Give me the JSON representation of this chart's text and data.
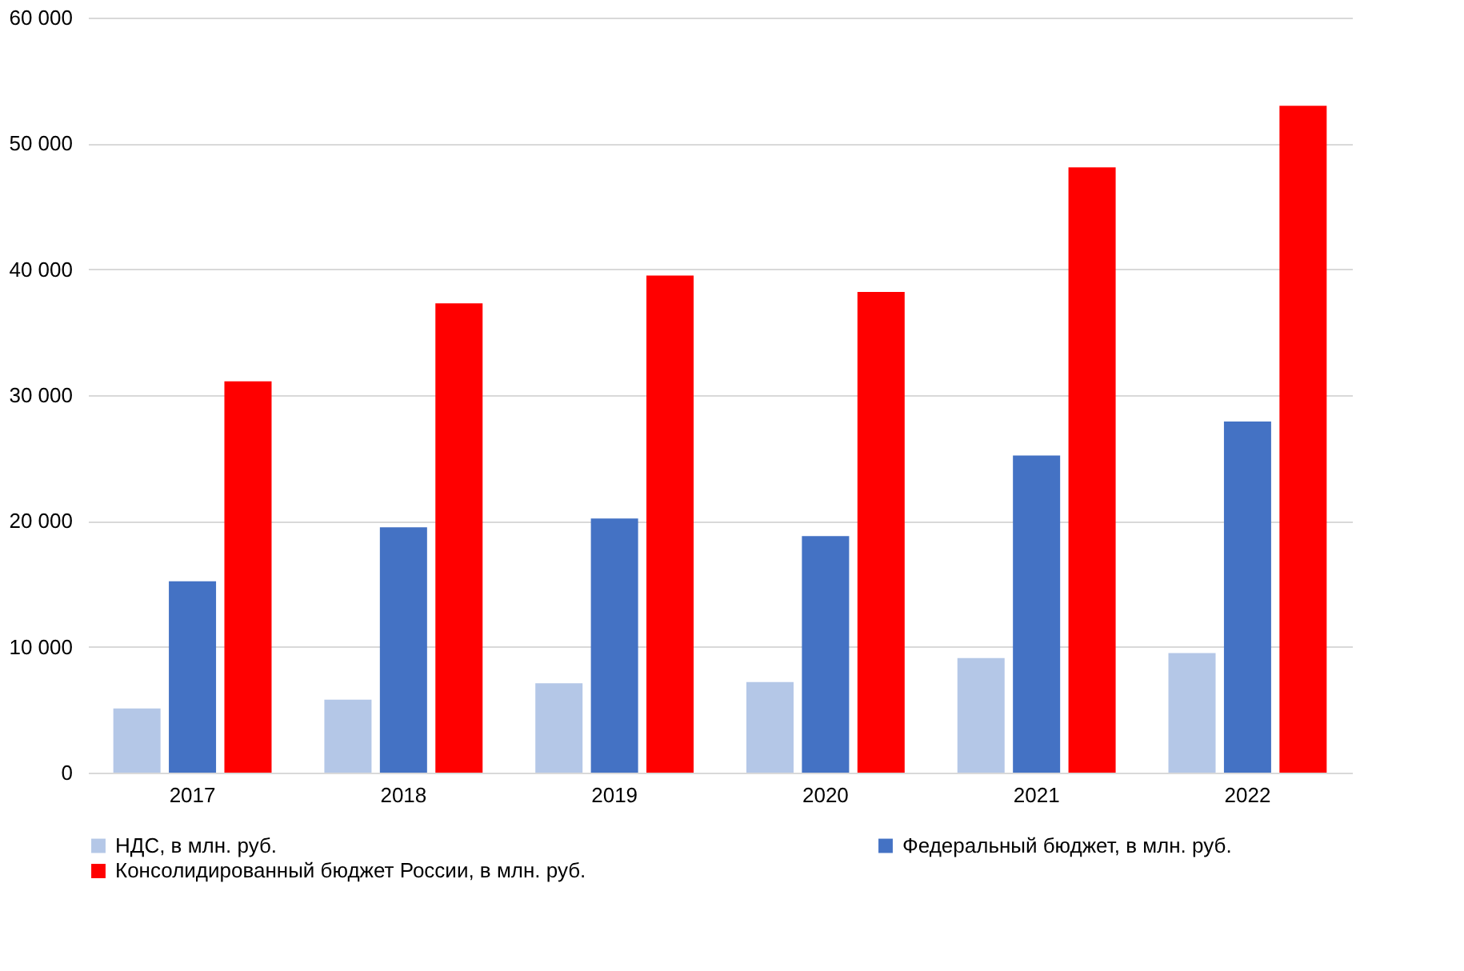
{
  "chart_data": {
    "type": "bar",
    "categories": [
      "2017",
      "2018",
      "2019",
      "2020",
      "2021",
      "2022"
    ],
    "series": [
      {
        "name": "НДС, в млн. руб.",
        "color": "#b4c7e7",
        "values": [
          5100,
          5800,
          7100,
          7200,
          9100,
          9500
        ]
      },
      {
        "name": "Федеральный бюджет, в млн. руб.",
        "color": "#4472c4",
        "values": [
          15200,
          19500,
          20200,
          18800,
          25200,
          27900
        ]
      },
      {
        "name": "Консолидированный бюджет России, в млн. руб.",
        "color": "#ff0000",
        "values": [
          31100,
          37300,
          39500,
          38200,
          48100,
          53000
        ]
      }
    ],
    "ylim": [
      0,
      60000
    ],
    "yticks": [
      {
        "value": 0,
        "label": "0"
      },
      {
        "value": 10000,
        "label": "10 000"
      },
      {
        "value": 20000,
        "label": "20 000"
      },
      {
        "value": 30000,
        "label": "30 000"
      },
      {
        "value": 40000,
        "label": "40 000"
      },
      {
        "value": 50000,
        "label": "50 000"
      },
      {
        "value": 60000,
        "label": "60 000"
      }
    ],
    "grid": "y",
    "legend": "bottom"
  }
}
